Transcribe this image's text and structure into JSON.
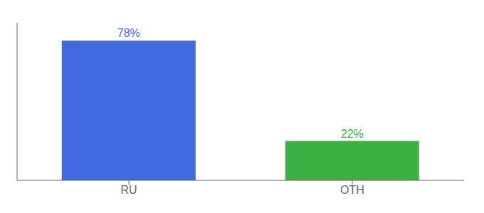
{
  "chart_data": {
    "type": "bar",
    "categories": [
      "RU",
      "OTH"
    ],
    "values": [
      78,
      22
    ],
    "colors": [
      "#4169e1",
      "#3cb043"
    ],
    "value_labels": [
      "78%",
      "22%"
    ],
    "data_labels": true,
    "ylim": [
      0,
      88
    ],
    "tick_labels": "x",
    "grid": false
  }
}
